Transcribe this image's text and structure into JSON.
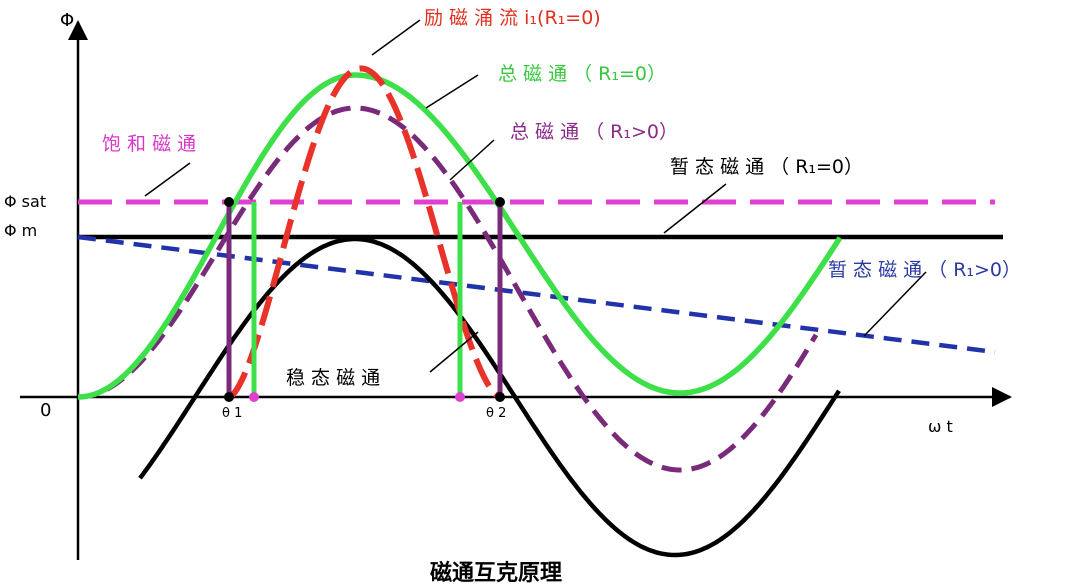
{
  "axes": {
    "y_label": "Φ",
    "x_label": "ω t",
    "origin_label": "0",
    "phi_sat_label": "Φ sat",
    "phi_m_label": "Φ m",
    "theta1_label": "θ 1",
    "theta2_label": "θ 2"
  },
  "labels": {
    "inrush_current": "励 磁 涌 流 i₁(R₁=0)",
    "total_flux_r0": "总 磁 通 （ R₁=0）",
    "total_flux_rpos": "总 磁 通 （ R₁>0）",
    "saturation_flux": "饱 和 磁 通",
    "transient_flux_r0": "暂 态 磁 通 （ R₁=0）",
    "transient_flux_rpos": "暂 态 磁 通 （ R₁>0）",
    "steady_flux": "稳 态 磁 通"
  },
  "caption": "磁通互克原理",
  "colors": {
    "inrush": "#e8322a",
    "total_r0": "#3ee04a",
    "total_rpos": "#7a2a7a",
    "saturation": "#e040d0",
    "transient_r0": "#000000",
    "transient_rpos": "#2233aa",
    "steady": "#000000",
    "label_red": "#e03020",
    "label_green": "#37c840",
    "label_purple": "#8a2a8a",
    "label_magenta": "#d838c8",
    "label_blue": "#2a3aa0"
  }
}
